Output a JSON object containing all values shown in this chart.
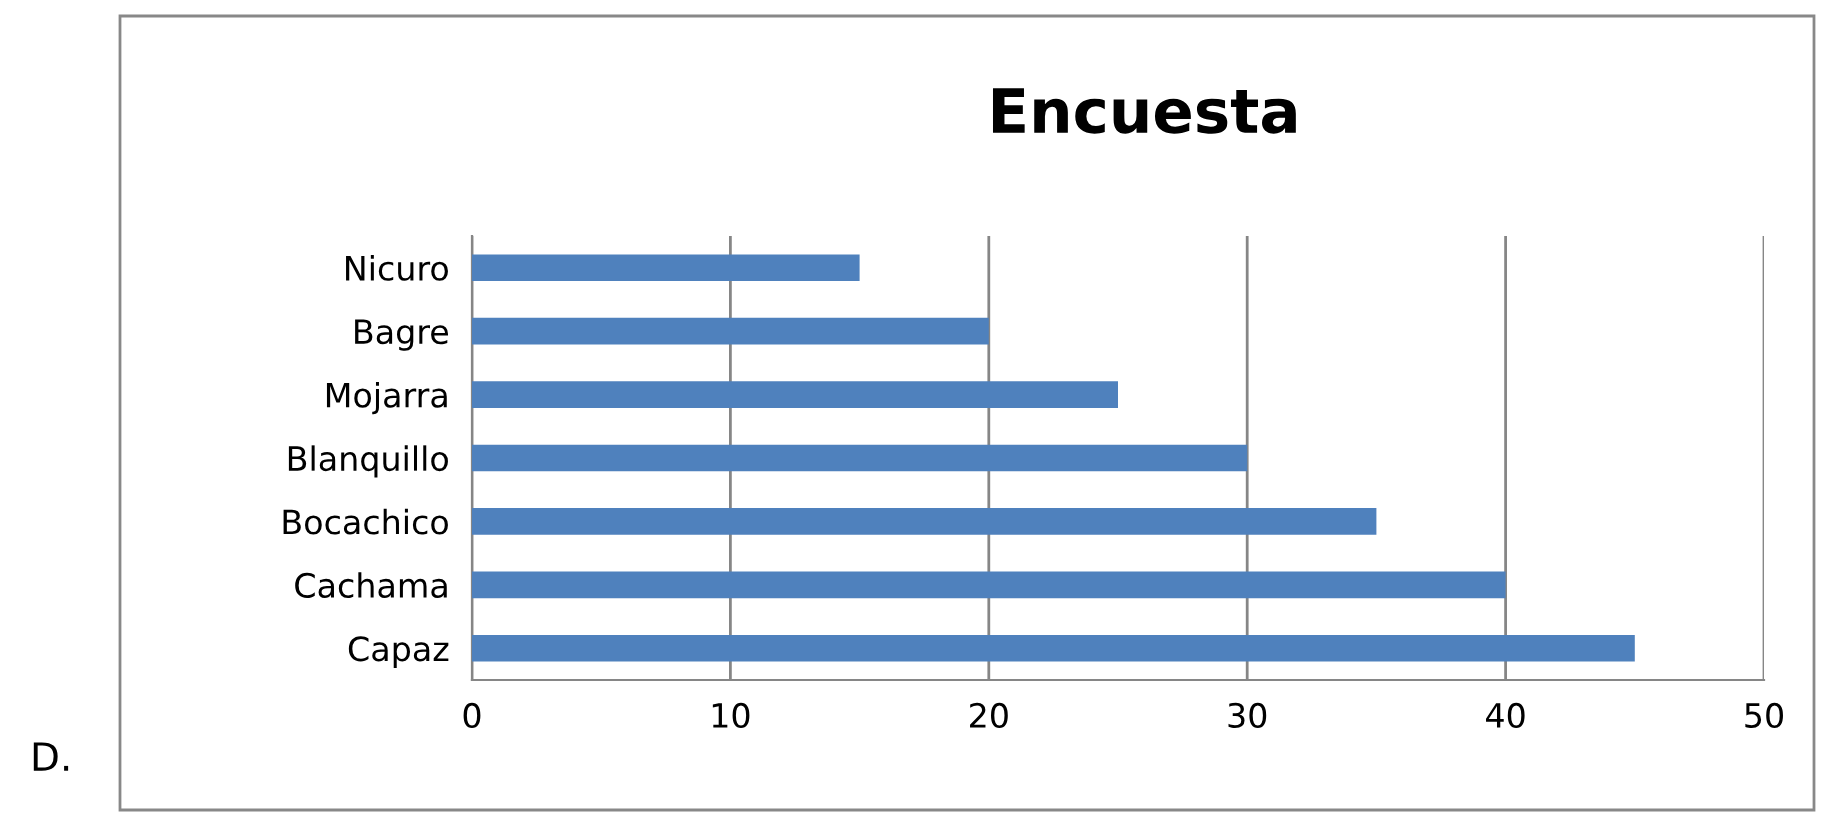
{
  "chart_data": {
    "type": "bar",
    "orientation": "horizontal",
    "title": "Encuesta",
    "categories": [
      "Nicuro",
      "Bagre",
      "Mojarra",
      "Blanquillo",
      "Bocachico",
      "Cachama",
      "Capaz"
    ],
    "values": [
      15,
      20,
      25,
      30,
      35,
      40,
      45
    ],
    "color": "#4f81bd",
    "xlim": [
      0,
      50
    ],
    "xticks": [
      0,
      10,
      20,
      30,
      40,
      50
    ],
    "grid": "x",
    "annotations": [
      "D."
    ]
  }
}
